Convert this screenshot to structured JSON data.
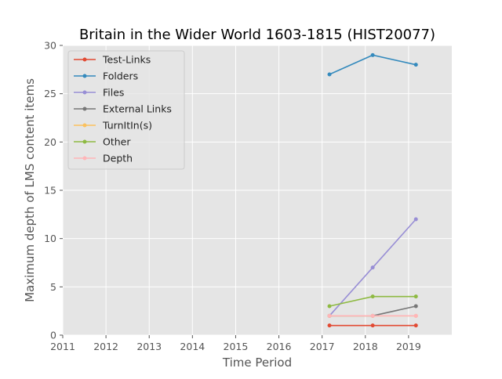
{
  "chart_data": {
    "type": "line",
    "title": "Britain in the Wider World 1603-1815 (HIST20077)",
    "xlabel": "Time Period",
    "ylabel": "Maximum depth of LMS content items",
    "xlim": [
      2011,
      2020
    ],
    "ylim": [
      0,
      30
    ],
    "x_ticks": [
      "2011",
      "2012",
      "2013",
      "2014",
      "2015",
      "2016",
      "2017",
      "2018",
      "2019"
    ],
    "y_ticks": [
      "0",
      "5",
      "10",
      "15",
      "20",
      "25",
      "30"
    ],
    "grid": true,
    "legend_position": "top-left",
    "x": [
      2017.17,
      2018.17,
      2019.17
    ],
    "series": [
      {
        "name": "Test-Links",
        "color": "#e24a33",
        "values": [
          1,
          1,
          1
        ]
      },
      {
        "name": "Folders",
        "color": "#348abd",
        "values": [
          27,
          29,
          28
        ]
      },
      {
        "name": "Files",
        "color": "#988ed5",
        "values": [
          2,
          7,
          12
        ]
      },
      {
        "name": "External Links",
        "color": "#777777",
        "values": [
          2,
          2,
          3
        ]
      },
      {
        "name": "TurnItIn(s)",
        "color": "#fbc15e",
        "values": [
          2,
          2,
          2
        ]
      },
      {
        "name": "Other",
        "color": "#8eba42",
        "values": [
          3,
          4,
          4
        ]
      },
      {
        "name": "Depth",
        "color": "#ffb5b8",
        "values": [
          2,
          2,
          2
        ]
      }
    ]
  }
}
